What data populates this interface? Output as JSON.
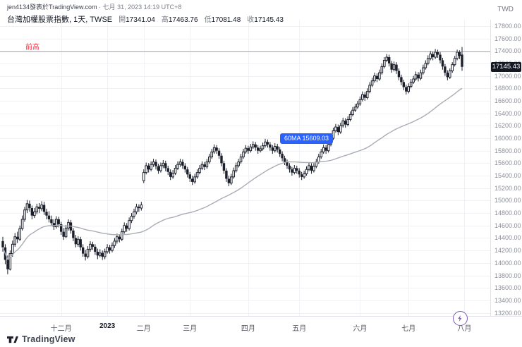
{
  "header": {
    "byline_author": "jen4134發表於TradingView.com",
    "byline_date": " · 七月 31, 2023 14:19 UTC+8",
    "symbol_row": {
      "title": "台灣加權股票指數, 1天, TWSE",
      "ohlc": [
        {
          "label": "開",
          "value": "17341.04"
        },
        {
          "label": "高",
          "value": "17463.76"
        },
        {
          "label": "低",
          "value": "17081.48"
        },
        {
          "label": "收",
          "value": "17145.43"
        }
      ]
    },
    "currency": "TWD"
  },
  "annotations": {
    "prev_high_label": "前高",
    "prev_high_price": 17390,
    "ma_badge": "60MA 15609.03",
    "last_price": "17145.43"
  },
  "footer": {
    "brand": "TradingView"
  },
  "colors": {
    "accent_blue": "#2962ff",
    "line_red": "#f23645",
    "ma_gray": "#aaadb5",
    "candle_dark": "#1b1f2a",
    "grid": "#f1f2f6",
    "axis_text": "#8c9099",
    "badge_bg": "#131722"
  },
  "chart_data": {
    "type": "candlestick",
    "title": "台灣加權股票指數, 1天, TWSE",
    "symbol": "台灣加權股票指數",
    "exchange": "TWSE",
    "interval": "1天",
    "currency": "TWD",
    "ylim": [
      13150,
      17900
    ],
    "y_ticks": [
      17800,
      17600,
      17400,
      17200,
      17000,
      16800,
      16600,
      16400,
      16200,
      16000,
      15800,
      15600,
      15400,
      15200,
      15000,
      14800,
      14600,
      14400,
      14200,
      14000,
      13800,
      13600,
      13400,
      13200
    ],
    "x_labels": [
      {
        "index": 24,
        "label": "十二月",
        "bold": false
      },
      {
        "index": 43,
        "label": "2023",
        "bold": true
      },
      {
        "index": 58,
        "label": "二月",
        "bold": false
      },
      {
        "index": 77,
        "label": "三月",
        "bold": false
      },
      {
        "index": 101,
        "label": "四月",
        "bold": false
      },
      {
        "index": 122,
        "label": "五月",
        "bold": false
      },
      {
        "index": 147,
        "label": "六月",
        "bold": false
      },
      {
        "index": 167,
        "label": "七月",
        "bold": false
      },
      {
        "index": 190,
        "label": "八月",
        "bold": false
      }
    ],
    "ma": {
      "name": "60MA",
      "period": 60,
      "last_value": 15609.03
    },
    "last": {
      "open": 17341.04,
      "high": 17463.76,
      "low": 17081.48,
      "close": 17145.43
    },
    "ohlc": [
      [
        14350,
        14420,
        14180,
        14250
      ],
      [
        14250,
        14300,
        13980,
        14050
      ],
      [
        14050,
        14120,
        13820,
        13900
      ],
      [
        13900,
        14200,
        13880,
        14150
      ],
      [
        14150,
        14360,
        14100,
        14300
      ],
      [
        14300,
        14480,
        14260,
        14420
      ],
      [
        14420,
        14500,
        14320,
        14380
      ],
      [
        14380,
        14600,
        14350,
        14550
      ],
      [
        14550,
        14760,
        14520,
        14700
      ],
      [
        14700,
        14900,
        14660,
        14850
      ],
      [
        14850,
        15010,
        14800,
        14950
      ],
      [
        14950,
        15000,
        14820,
        14880
      ],
      [
        14880,
        14920,
        14700,
        14760
      ],
      [
        14760,
        14880,
        14720,
        14820
      ],
      [
        14820,
        14950,
        14780,
        14900
      ],
      [
        14900,
        14960,
        14800,
        14870
      ],
      [
        14870,
        14990,
        14830,
        14930
      ],
      [
        14930,
        14980,
        14770,
        14820
      ],
      [
        14820,
        14870,
        14700,
        14760
      ],
      [
        14760,
        14830,
        14650,
        14700
      ],
      [
        14700,
        14760,
        14590,
        14640
      ],
      [
        14640,
        14700,
        14530,
        14580
      ],
      [
        14580,
        14750,
        14550,
        14700
      ],
      [
        14700,
        14740,
        14570,
        14620
      ],
      [
        14620,
        14660,
        14450,
        14500
      ],
      [
        14500,
        14560,
        14370,
        14420
      ],
      [
        14420,
        14610,
        14400,
        14560
      ],
      [
        14560,
        14700,
        14520,
        14650
      ],
      [
        14650,
        14690,
        14470,
        14520
      ],
      [
        14520,
        14560,
        14350,
        14400
      ],
      [
        14400,
        14450,
        14250,
        14300
      ],
      [
        14300,
        14430,
        14260,
        14380
      ],
      [
        14380,
        14420,
        14200,
        14250
      ],
      [
        14250,
        14300,
        14100,
        14150
      ],
      [
        14150,
        14210,
        14040,
        14100
      ],
      [
        14100,
        14270,
        14070,
        14220
      ],
      [
        14220,
        14350,
        14180,
        14300
      ],
      [
        14300,
        14340,
        14210,
        14260
      ],
      [
        14260,
        14300,
        14130,
        14180
      ],
      [
        14180,
        14230,
        14060,
        14120
      ],
      [
        14120,
        14220,
        14090,
        14160
      ],
      [
        14160,
        14200,
        14050,
        14100
      ],
      [
        14100,
        14230,
        14060,
        14180
      ],
      [
        14180,
        14300,
        14150,
        14250
      ],
      [
        14250,
        14290,
        14150,
        14200
      ],
      [
        14200,
        14330,
        14170,
        14280
      ],
      [
        14280,
        14400,
        14240,
        14350
      ],
      [
        14350,
        14470,
        14310,
        14420
      ],
      [
        14420,
        14460,
        14330,
        14380
      ],
      [
        14380,
        14550,
        14350,
        14500
      ],
      [
        14500,
        14650,
        14470,
        14600
      ],
      [
        14600,
        14640,
        14500,
        14550
      ],
      [
        14550,
        14730,
        14520,
        14680
      ],
      [
        14680,
        14800,
        14640,
        14750
      ],
      [
        14750,
        14870,
        14710,
        14820
      ],
      [
        14820,
        14950,
        14780,
        14900
      ],
      [
        14900,
        14940,
        14820,
        14880
      ],
      [
        14880,
        14980,
        14840,
        14930
      ],
      [
        15320,
        15500,
        15280,
        15450
      ],
      [
        15450,
        15610,
        15420,
        15560
      ],
      [
        15560,
        15600,
        15450,
        15500
      ],
      [
        15500,
        15630,
        15470,
        15580
      ],
      [
        15580,
        15670,
        15540,
        15620
      ],
      [
        15620,
        15660,
        15500,
        15550
      ],
      [
        15550,
        15590,
        15430,
        15480
      ],
      [
        15480,
        15610,
        15450,
        15560
      ],
      [
        15560,
        15650,
        15520,
        15600
      ],
      [
        15600,
        15640,
        15470,
        15520
      ],
      [
        15520,
        15560,
        15410,
        15460
      ],
      [
        15460,
        15500,
        15330,
        15380
      ],
      [
        15380,
        15490,
        15350,
        15440
      ],
      [
        15440,
        15570,
        15410,
        15520
      ],
      [
        15520,
        15630,
        15490,
        15580
      ],
      [
        15580,
        15670,
        15540,
        15620
      ],
      [
        15620,
        15660,
        15510,
        15560
      ],
      [
        15560,
        15600,
        15450,
        15500
      ],
      [
        15500,
        15540,
        15370,
        15420
      ],
      [
        15420,
        15460,
        15300,
        15350
      ],
      [
        15350,
        15400,
        15250,
        15300
      ],
      [
        15300,
        15430,
        15270,
        15380
      ],
      [
        15380,
        15500,
        15350,
        15450
      ],
      [
        15450,
        15570,
        15420,
        15520
      ],
      [
        15520,
        15630,
        15490,
        15580
      ],
      [
        15580,
        15620,
        15490,
        15540
      ],
      [
        15540,
        15670,
        15510,
        15620
      ],
      [
        15620,
        15750,
        15590,
        15700
      ],
      [
        15700,
        15830,
        15670,
        15780
      ],
      [
        15780,
        15900,
        15750,
        15850
      ],
      [
        15850,
        15890,
        15750,
        15800
      ],
      [
        15800,
        15840,
        15670,
        15720
      ],
      [
        15720,
        15760,
        15550,
        15600
      ],
      [
        15600,
        15640,
        15430,
        15480
      ],
      [
        15480,
        15520,
        15300,
        15350
      ],
      [
        15350,
        15400,
        15230,
        15280
      ],
      [
        15280,
        15430,
        15250,
        15380
      ],
      [
        15380,
        15530,
        15350,
        15480
      ],
      [
        15480,
        15610,
        15450,
        15560
      ],
      [
        15560,
        15670,
        15530,
        15620
      ],
      [
        15620,
        15750,
        15590,
        15700
      ],
      [
        15700,
        15830,
        15670,
        15780
      ],
      [
        15780,
        15890,
        15750,
        15840
      ],
      [
        15840,
        15880,
        15750,
        15800
      ],
      [
        15800,
        15910,
        15770,
        15860
      ],
      [
        15860,
        15950,
        15830,
        15900
      ],
      [
        15900,
        15940,
        15800,
        15850
      ],
      [
        15850,
        15890,
        15750,
        15800
      ],
      [
        15800,
        15880,
        15770,
        15830
      ],
      [
        15830,
        15930,
        15800,
        15880
      ],
      [
        15880,
        15990,
        15850,
        15940
      ],
      [
        15940,
        15980,
        15850,
        15900
      ],
      [
        15900,
        15940,
        15800,
        15850
      ],
      [
        15850,
        15890,
        15750,
        15800
      ],
      [
        15800,
        15920,
        15770,
        15870
      ],
      [
        15870,
        15910,
        15770,
        15820
      ],
      [
        15820,
        15860,
        15700,
        15750
      ],
      [
        15750,
        15790,
        15630,
        15680
      ],
      [
        15680,
        15720,
        15570,
        15620
      ],
      [
        15620,
        15660,
        15510,
        15560
      ],
      [
        15560,
        15600,
        15450,
        15500
      ],
      [
        15500,
        15540,
        15400,
        15450
      ],
      [
        15450,
        15570,
        15420,
        15520
      ],
      [
        15520,
        15560,
        15430,
        15480
      ],
      [
        15480,
        15520,
        15370,
        15420
      ],
      [
        15420,
        15460,
        15330,
        15380
      ],
      [
        15380,
        15480,
        15350,
        15430
      ],
      [
        15430,
        15550,
        15400,
        15500
      ],
      [
        15500,
        15610,
        15470,
        15560
      ],
      [
        15560,
        15600,
        15430,
        15480
      ],
      [
        15480,
        15600,
        15450,
        15550
      ],
      [
        15550,
        15670,
        15520,
        15620
      ],
      [
        15620,
        15750,
        15590,
        15700
      ],
      [
        15700,
        15830,
        15670,
        15780
      ],
      [
        15780,
        15900,
        15750,
        15850
      ],
      [
        15850,
        15890,
        15750,
        15800
      ],
      [
        15800,
        15950,
        15770,
        15900
      ],
      [
        15900,
        16050,
        15870,
        16000
      ],
      [
        16000,
        16170,
        15970,
        16120
      ],
      [
        16120,
        16230,
        16090,
        16180
      ],
      [
        16180,
        16220,
        16050,
        16100
      ],
      [
        16100,
        16250,
        16070,
        16200
      ],
      [
        16200,
        16330,
        16170,
        16280
      ],
      [
        16280,
        16320,
        16170,
        16220
      ],
      [
        16220,
        16350,
        16190,
        16300
      ],
      [
        16300,
        16430,
        16270,
        16380
      ],
      [
        16380,
        16500,
        16350,
        16450
      ],
      [
        16450,
        16550,
        16420,
        16500
      ],
      [
        16500,
        16600,
        16470,
        16550
      ],
      [
        16550,
        16670,
        16520,
        16620
      ],
      [
        16620,
        16750,
        16590,
        16700
      ],
      [
        16700,
        16740,
        16600,
        16650
      ],
      [
        16650,
        16800,
        16620,
        16750
      ],
      [
        16750,
        16900,
        16720,
        16850
      ],
      [
        16850,
        16970,
        16820,
        16920
      ],
      [
        16920,
        17050,
        16890,
        17000
      ],
      [
        17000,
        17040,
        16900,
        16950
      ],
      [
        16950,
        17100,
        16920,
        17050
      ],
      [
        17050,
        17200,
        17020,
        17150
      ],
      [
        17150,
        17300,
        17120,
        17250
      ],
      [
        17250,
        17350,
        17220,
        17300
      ],
      [
        17300,
        17340,
        17150,
        17200
      ],
      [
        17200,
        17240,
        17050,
        17100
      ],
      [
        17100,
        17230,
        17070,
        17180
      ],
      [
        17180,
        17220,
        17030,
        17080
      ],
      [
        17080,
        17120,
        16930,
        16980
      ],
      [
        16980,
        17020,
        16850,
        16900
      ],
      [
        16900,
        16940,
        16770,
        16820
      ],
      [
        16820,
        16860,
        16700,
        16750
      ],
      [
        16750,
        16880,
        16720,
        16830
      ],
      [
        16830,
        16950,
        16800,
        16900
      ],
      [
        16900,
        17000,
        16870,
        16950
      ],
      [
        16950,
        17070,
        16920,
        17020
      ],
      [
        17020,
        17060,
        16910,
        16960
      ],
      [
        16960,
        17100,
        16930,
        17050
      ],
      [
        17050,
        17180,
        17020,
        17130
      ],
      [
        17130,
        17250,
        17100,
        17200
      ],
      [
        17200,
        17330,
        17170,
        17280
      ],
      [
        17280,
        17400,
        17250,
        17350
      ],
      [
        17350,
        17390,
        17250,
        17300
      ],
      [
        17300,
        17430,
        17270,
        17380
      ],
      [
        17380,
        17420,
        17290,
        17340
      ],
      [
        17340,
        17380,
        17200,
        17250
      ],
      [
        17250,
        17290,
        17100,
        17150
      ],
      [
        17150,
        17190,
        17000,
        17050
      ],
      [
        17050,
        17090,
        16930,
        16980
      ],
      [
        16980,
        17120,
        16950,
        17080
      ],
      [
        17080,
        17220,
        17050,
        17180
      ],
      [
        17180,
        17320,
        17150,
        17280
      ],
      [
        17280,
        17420,
        17250,
        17380
      ],
      [
        17380,
        17410,
        17270,
        17320
      ],
      [
        17341.04,
        17463.76,
        17081.48,
        17145.43
      ]
    ]
  }
}
